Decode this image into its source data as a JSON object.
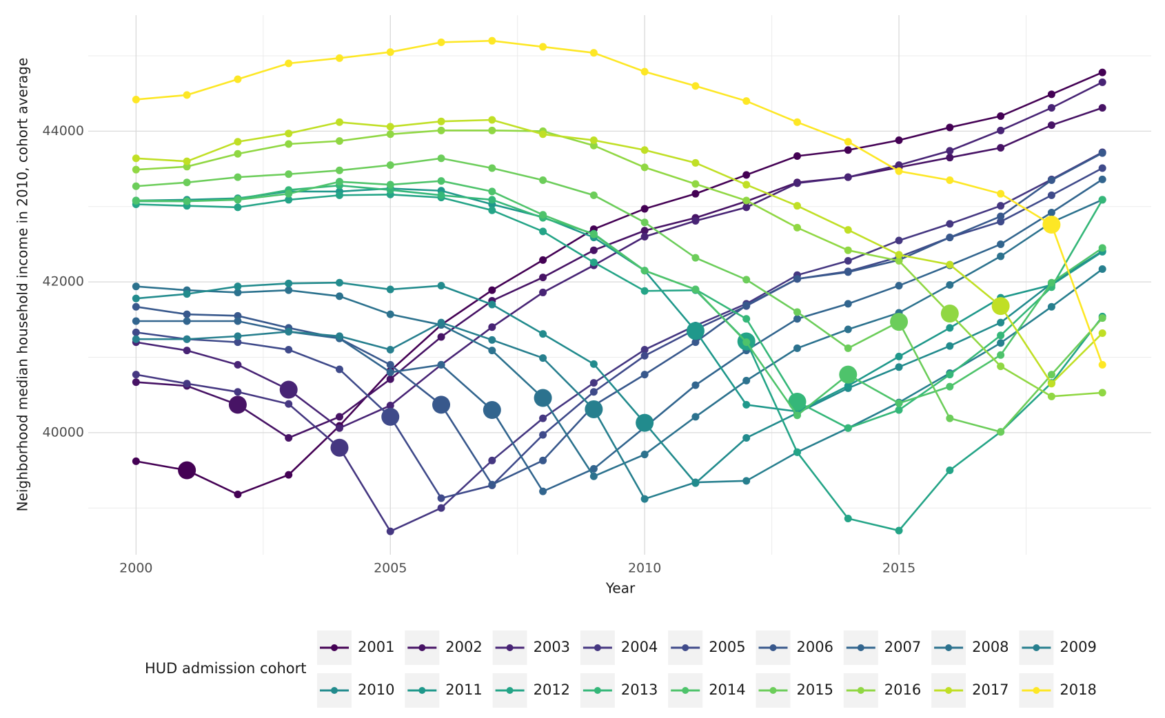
{
  "chart_data": {
    "type": "line",
    "x_label": "Year",
    "y_label": "Neighborhood median household income in 2010, cohort average",
    "legend_title": "HUD admission cohort",
    "legend_position": "bottom",
    "grid": true,
    "x": [
      2000,
      2001,
      2002,
      2003,
      2004,
      2005,
      2006,
      2007,
      2008,
      2009,
      2010,
      2011,
      2012,
      2013,
      2014,
      2015,
      2016,
      2017,
      2018,
      2019
    ],
    "xlim": [
      1999.06,
      2019.96
    ],
    "xticks": [
      2000,
      2005,
      2010,
      2015
    ],
    "ylim": [
      38380,
      45540
    ],
    "yticks": [
      40000,
      42000,
      44000
    ],
    "series": [
      {
        "name": "2001",
        "color": "#440154",
        "values": [
          39620,
          39500,
          39180,
          39440,
          40090,
          40820,
          41430,
          41890,
          42290,
          42700,
          42970,
          43170,
          43420,
          43670,
          43750,
          43880,
          44050,
          44200,
          44490,
          44780
        ]
      },
      {
        "name": "2002",
        "color": "#471365",
        "values": [
          40670,
          40620,
          40370,
          39930,
          40210,
          40710,
          41270,
          41750,
          42060,
          42420,
          42680,
          42850,
          43070,
          43320,
          43390,
          43520,
          43650,
          43780,
          44080,
          44310
        ]
      },
      {
        "name": "2003",
        "color": "#482475",
        "values": [
          41200,
          41090,
          40900,
          40570,
          40060,
          40360,
          40900,
          41400,
          41860,
          42220,
          42600,
          42810,
          42990,
          43310,
          43390,
          43550,
          43740,
          44010,
          44310,
          44650
        ]
      },
      {
        "name": "2004",
        "color": "#453781",
        "values": [
          40770,
          40650,
          40540,
          40380,
          39800,
          38690,
          39000,
          39630,
          40190,
          40660,
          41100,
          41420,
          41710,
          42090,
          42280,
          42550,
          42770,
          43010,
          43360,
          43720
        ]
      },
      {
        "name": "2005",
        "color": "#3f4a8a",
        "values": [
          41330,
          41240,
          41200,
          41100,
          40840,
          40210,
          39130,
          39300,
          39970,
          40540,
          41020,
          41370,
          41680,
          42040,
          42140,
          42330,
          42590,
          42800,
          43150,
          43510
        ]
      },
      {
        "name": "2006",
        "color": "#38588c",
        "values": [
          41670,
          41570,
          41550,
          41390,
          41250,
          40900,
          40370,
          39310,
          39630,
          40360,
          40770,
          41200,
          41690,
          42040,
          42130,
          42290,
          42590,
          42870,
          43350,
          43710
        ]
      },
      {
        "name": "2007",
        "color": "#32658e",
        "values": [
          41480,
          41480,
          41480,
          41340,
          41250,
          40800,
          40900,
          40300,
          39220,
          39520,
          40070,
          40630,
          41090,
          41510,
          41710,
          41950,
          42220,
          42500,
          42920,
          43360
        ]
      },
      {
        "name": "2008",
        "color": "#2c728e",
        "values": [
          41940,
          41890,
          41860,
          41890,
          41810,
          41570,
          41430,
          41090,
          40460,
          39420,
          39710,
          40210,
          40690,
          41120,
          41370,
          41590,
          41960,
          42340,
          42790,
          43090
        ]
      },
      {
        "name": "2009",
        "color": "#277f8e",
        "values": [
          41240,
          41240,
          41280,
          41340,
          41280,
          41100,
          41460,
          41230,
          40990,
          40310,
          39120,
          39340,
          39360,
          39740,
          40060,
          40400,
          40790,
          41190,
          41670,
          42170
        ]
      },
      {
        "name": "2010",
        "color": "#228b8d",
        "values": [
          41780,
          41840,
          41940,
          41980,
          41990,
          41900,
          41950,
          41700,
          41310,
          40910,
          40130,
          39330,
          39930,
          40260,
          40590,
          40870,
          41150,
          41460,
          41980,
          42410
        ]
      },
      {
        "name": "2011",
        "color": "#1f988b",
        "values": [
          43080,
          43090,
          43110,
          43200,
          43200,
          43240,
          43210,
          43030,
          42860,
          42590,
          42150,
          41350,
          40370,
          40280,
          40620,
          41010,
          41390,
          41790,
          41960,
          42400
        ]
      },
      {
        "name": "2012",
        "color": "#24a487",
        "values": [
          43030,
          43010,
          42990,
          43090,
          43150,
          43160,
          43120,
          42950,
          42670,
          42260,
          41880,
          41890,
          41210,
          39740,
          38860,
          38700,
          39500,
          40010,
          40660,
          41540
        ]
      },
      {
        "name": "2013",
        "color": "#35b779",
        "values": [
          43070,
          43070,
          43100,
          43220,
          43280,
          43220,
          43150,
          43090,
          42850,
          42640,
          42150,
          41900,
          41510,
          40410,
          40060,
          40300,
          40770,
          41290,
          41930,
          43090
        ]
      },
      {
        "name": "2014",
        "color": "#4ec36b",
        "values": [
          43080,
          43070,
          43090,
          43170,
          43330,
          43290,
          43340,
          43200,
          42890,
          42630,
          42150,
          41900,
          41200,
          40230,
          40770,
          40390,
          40610,
          41030,
          41990,
          42450
        ]
      },
      {
        "name": "2015",
        "color": "#6ccd5a",
        "values": [
          43270,
          43320,
          43390,
          43430,
          43480,
          43550,
          43640,
          43510,
          43350,
          43150,
          42790,
          42320,
          42030,
          41600,
          41120,
          41470,
          40190,
          40010,
          40770,
          41520
        ]
      },
      {
        "name": "2016",
        "color": "#90d743",
        "values": [
          43490,
          43530,
          43700,
          43830,
          43870,
          43960,
          44010,
          44010,
          44000,
          43810,
          43520,
          43300,
          43080,
          42720,
          42420,
          42280,
          41580,
          40880,
          40480,
          40530
        ]
      },
      {
        "name": "2017",
        "color": "#c0df25",
        "values": [
          43640,
          43600,
          43860,
          43970,
          44120,
          44060,
          44130,
          44150,
          43960,
          43880,
          43750,
          43580,
          43290,
          43010,
          42690,
          42360,
          42230,
          41680,
          40650,
          41320
        ]
      },
      {
        "name": "2018",
        "color": "#fde725",
        "values": [
          44420,
          44480,
          44690,
          44900,
          44970,
          45050,
          45180,
          45200,
          45120,
          45040,
          44790,
          44600,
          44400,
          44120,
          43860,
          43470,
          43350,
          43170,
          42760,
          40900
        ]
      }
    ]
  }
}
